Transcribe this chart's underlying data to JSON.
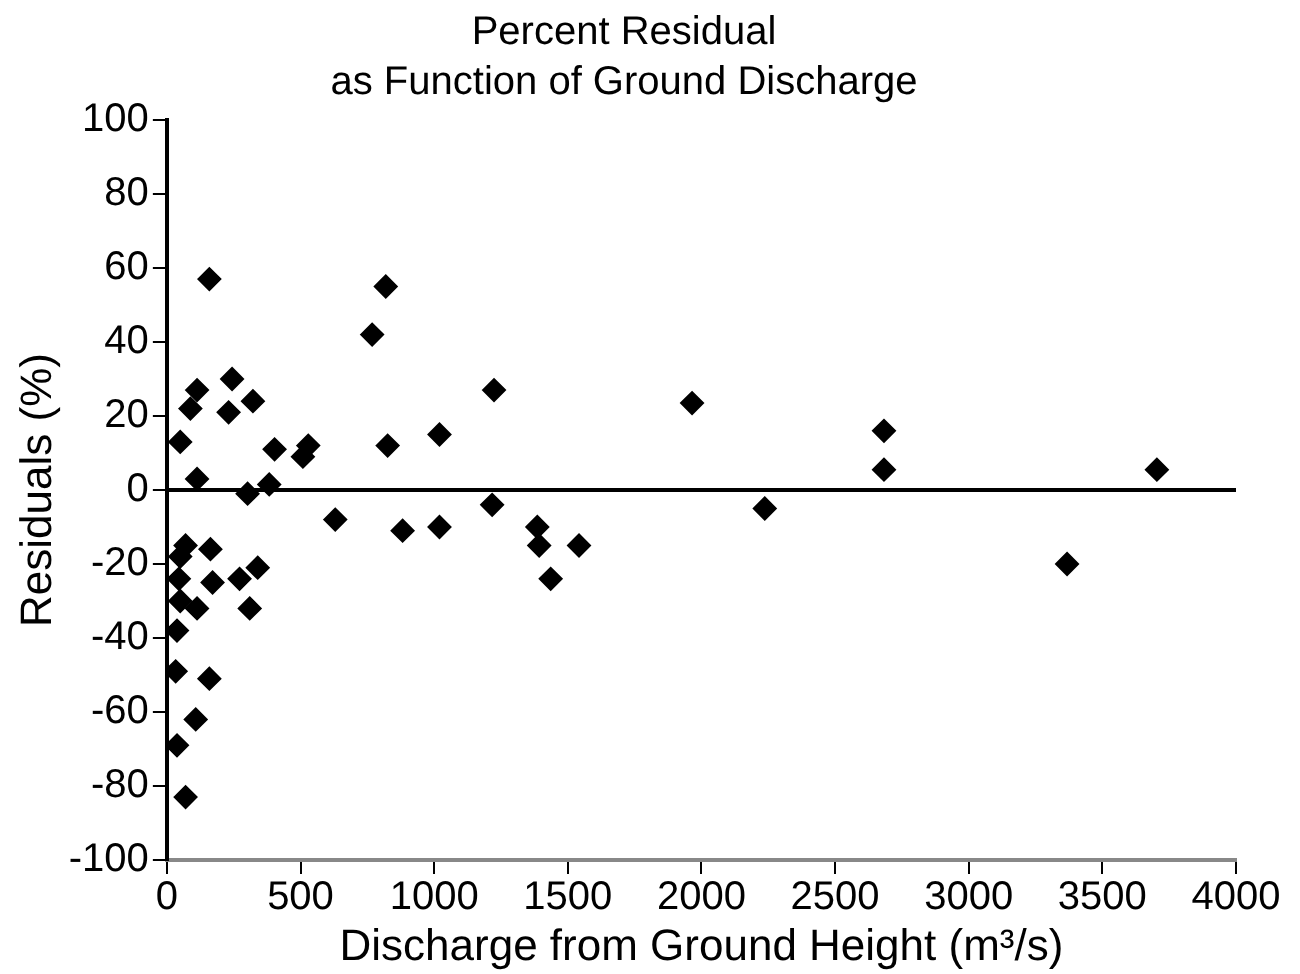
{
  "chart_data": {
    "type": "scatter",
    "title": "Percent Residual\nas Function of Ground Discharge",
    "xlabel": "Discharge from Ground Height (m³/s)",
    "ylabel": "Residuals (%)",
    "xlim": [
      0,
      4000
    ],
    "xticks": [
      0,
      500,
      1000,
      1500,
      2000,
      2500,
      3000,
      3500,
      4000
    ],
    "ylim": [
      -100,
      100
    ],
    "yticks": [
      -100,
      -80,
      -60,
      -40,
      -20,
      0,
      20,
      40,
      60,
      80,
      100
    ],
    "grid": false,
    "ref_lines": [
      {
        "axis": "y",
        "value": 0,
        "color": "#000000"
      }
    ],
    "legend": false,
    "marker": "diamond",
    "series": [
      {
        "color": "#000000",
        "x": [
          159,
          819,
          768,
          113,
          244,
          322,
          88,
          231,
          1224,
          50,
          826,
          1020,
          403,
          529,
          509,
          113,
          383,
          302,
          630,
          882,
          1020,
          1217,
          1386,
          1393,
          1436,
          70,
          163,
          50,
          45,
          340,
          272,
          171,
          50,
          113,
          310,
          38,
          33,
          159,
          108,
          38,
          70,
          1542,
          1965,
          2683,
          2683,
          3704,
          2237,
          3368
        ],
        "values": [
          57,
          55,
          42,
          27,
          30,
          24,
          22,
          21,
          27,
          13,
          12,
          15,
          11,
          12,
          9,
          3,
          1.5,
          -1,
          -8,
          -11,
          -10,
          -4,
          -10,
          -15,
          -24,
          -15,
          -16,
          -18,
          -24,
          -21,
          -24,
          -25,
          -30,
          -32,
          -32,
          -38,
          -49,
          -51,
          -62,
          -69,
          -83,
          -15,
          23.5,
          16,
          5.5,
          5.5,
          -5,
          -20
        ]
      }
    ]
  }
}
